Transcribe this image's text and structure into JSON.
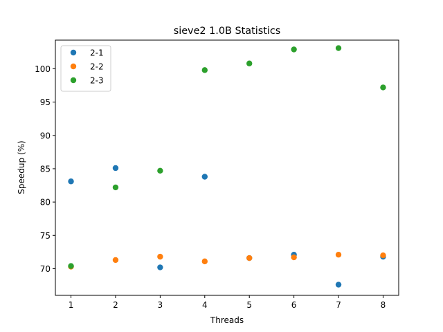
{
  "chart_data": {
    "type": "scatter",
    "title": "sieve2 1.0B Statistics",
    "xlabel": "Threads",
    "ylabel": "Speedup (%)",
    "xlim": [
      0.65,
      8.35
    ],
    "ylim": [
      66.0,
      104.3
    ],
    "xticks": [
      1,
      2,
      3,
      4,
      5,
      6,
      7,
      8
    ],
    "yticks": [
      70,
      75,
      80,
      85,
      90,
      95,
      100
    ],
    "grid": false,
    "legend_position": "top-left",
    "series": [
      {
        "name": "2-1",
        "color": "#1f77b4",
        "x": [
          1,
          2,
          3,
          4,
          5,
          6,
          7,
          8
        ],
        "y": [
          83.1,
          85.1,
          70.2,
          83.8,
          71.6,
          72.1,
          67.6,
          71.8
        ]
      },
      {
        "name": "2-2",
        "color": "#ff7f0e",
        "x": [
          1,
          2,
          3,
          4,
          5,
          6,
          7,
          8
        ],
        "y": [
          70.3,
          71.3,
          71.8,
          71.1,
          71.6,
          71.7,
          72.1,
          72.0
        ]
      },
      {
        "name": "2-3",
        "color": "#2ca02c",
        "x": [
          1,
          2,
          3,
          4,
          5,
          6,
          7,
          8
        ],
        "y": [
          70.4,
          82.2,
          84.7,
          99.8,
          100.8,
          102.9,
          103.1,
          97.2
        ]
      }
    ]
  }
}
